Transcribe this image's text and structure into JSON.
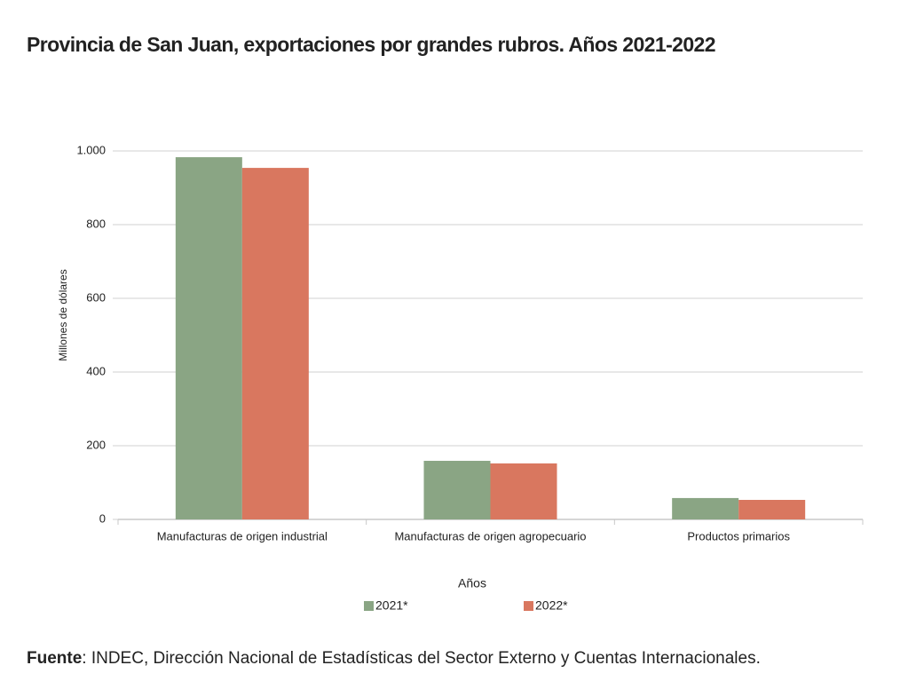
{
  "chart_data": {
    "type": "bar",
    "title": "Provincia de San Juan, exportaciones por grandes rubros. Años 2021-2022",
    "y_label": "Millones de dólares",
    "x_label": "Años",
    "categories": [
      "Manufacturas de origen industrial",
      "Manufacturas de origen agropecuario",
      "Productos primarios"
    ],
    "series": [
      {
        "name": "2021*",
        "color": "#8aa584",
        "values": [
          983,
          159,
          58
        ]
      },
      {
        "name": "2022*",
        "color": "#d9775f",
        "values": [
          954,
          152,
          53
        ]
      }
    ],
    "ylim": [
      0,
      1000
    ],
    "yticks": [
      0,
      200,
      400,
      600,
      800,
      {
        "value": 1000,
        "label": "1.000"
      }
    ],
    "grid": true,
    "legend": "bottom",
    "source_label": "Fuente",
    "source": ": INDEC, Dirección Nacional de Estadísticas del Sector Externo y Cuentas Internacionales."
  }
}
